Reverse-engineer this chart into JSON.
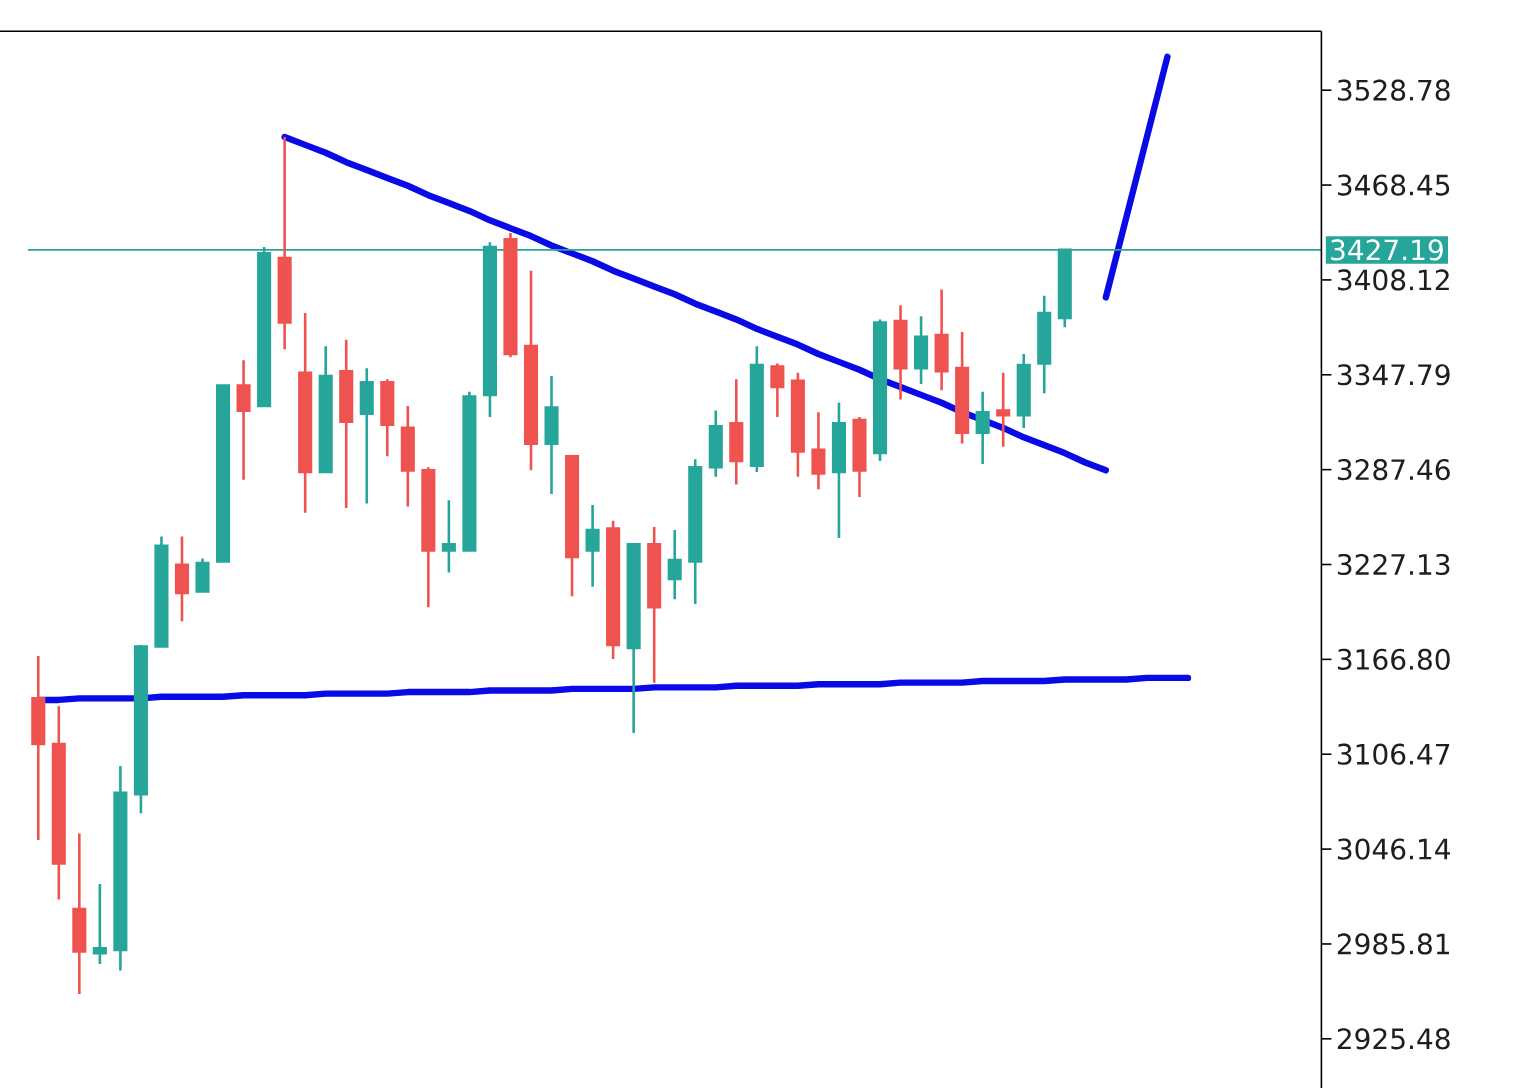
{
  "chart_data": {
    "type": "candlestick",
    "categories": [
      null,
      null,
      null,
      null,
      null,
      null,
      null,
      null,
      null,
      null,
      null,
      null,
      null,
      null,
      null,
      null,
      null,
      null,
      null,
      null,
      null,
      null,
      null,
      null,
      null,
      null,
      null,
      null,
      null,
      null,
      null,
      null,
      null,
      null,
      null,
      null,
      null,
      null,
      null,
      null,
      null,
      null,
      null,
      null,
      null,
      null,
      null,
      null,
      null,
      null,
      null,
      null,
      null,
      null,
      null,
      null,
      null
    ],
    "ohlc": [
      [
        3142,
        3169,
        3052,
        3113
      ],
      [
        3113,
        3137,
        3014,
        3037
      ],
      [
        3008,
        3056,
        2954,
        2981
      ],
      [
        2980,
        3024,
        2973,
        2983
      ],
      [
        2982,
        3099,
        2969,
        3082
      ],
      [
        3081,
        3176,
        3069,
        3175
      ],
      [
        3175,
        3245,
        3175,
        3239
      ],
      [
        3227,
        3245,
        3191,
        3209
      ],
      [
        3210,
        3231,
        3210,
        3228
      ],
      [
        3229,
        3341,
        3229,
        3341
      ],
      [
        3341,
        3357,
        3281,
        3325
      ],
      [
        3328,
        3429,
        3328,
        3425
      ],
      [
        3422,
        3499,
        3364,
        3381
      ],
      [
        3349,
        3387,
        3260,
        3286
      ],
      [
        3286,
        3366,
        3286,
        3347
      ],
      [
        3350,
        3370,
        3263,
        3318
      ],
      [
        3323,
        3352,
        3266,
        3343
      ],
      [
        3343,
        3345,
        3296,
        3316
      ],
      [
        3314,
        3328,
        3264,
        3287
      ],
      [
        3287,
        3289,
        3200,
        3236
      ],
      [
        3236,
        3268,
        3222,
        3240
      ],
      [
        3236,
        3337,
        3236,
        3334
      ],
      [
        3335,
        3432,
        3321,
        3429
      ],
      [
        3434,
        3438,
        3359,
        3361
      ],
      [
        3366,
        3414,
        3287,
        3304
      ],
      [
        3304,
        3347,
        3272,
        3327
      ],
      [
        3296,
        3296,
        3207,
        3232
      ],
      [
        3236,
        3265,
        3213,
        3249
      ],
      [
        3250,
        3255,
        3167,
        3176
      ],
      [
        3174,
        3240,
        3120,
        3240
      ],
      [
        3240,
        3251,
        3152,
        3200
      ],
      [
        3218,
        3249,
        3205,
        3230
      ],
      [
        3229,
        3294,
        3202,
        3289
      ],
      [
        3289,
        3325,
        3283,
        3315
      ],
      [
        3317,
        3345,
        3278,
        3293
      ],
      [
        3290,
        3366,
        3286,
        3354
      ],
      [
        3353,
        3355,
        3321,
        3340
      ],
      [
        3344,
        3349,
        3283,
        3299
      ],
      [
        3300,
        3324,
        3275,
        3285
      ],
      [
        3286,
        3330,
        3244,
        3317
      ],
      [
        3319,
        3321,
        3270,
        3287
      ],
      [
        3298,
        3383,
        3293,
        3381
      ],
      [
        3382,
        3392,
        3332,
        3352
      ],
      [
        3352,
        3385,
        3342,
        3372
      ],
      [
        3373,
        3402,
        3338,
        3350
      ],
      [
        3352,
        3375,
        3304,
        3311
      ],
      [
        3311,
        3337,
        3291,
        3324
      ],
      [
        3325,
        3349,
        3302,
        3322
      ],
      [
        3322,
        3361,
        3314,
        3354
      ],
      [
        3355,
        3398,
        3336,
        3387
      ],
      [
        3384,
        3427.19,
        3378,
        3427.19
      ],
      null,
      null,
      null,
      null,
      null,
      null
    ],
    "colors": [
      "#ef5350",
      "#ef5350",
      "#ef5350",
      "#26a69a",
      "#26a69a",
      "#26a69a",
      "#26a69a",
      "#ef5350",
      "#26a69a",
      "#26a69a",
      "#ef5350",
      "#26a69a",
      "#ef5350",
      "#ef5350",
      "#26a69a",
      "#ef5350",
      "#26a69a",
      "#ef5350",
      "#ef5350",
      "#ef5350",
      "#26a69a",
      "#26a69a",
      "#26a69a",
      "#ef5350",
      "#ef5350",
      "#26a69a",
      "#ef5350",
      "#26a69a",
      "#ef5350",
      "#26a69a",
      "#ef5350",
      "#26a69a",
      "#26a69a",
      "#26a69a",
      "#ef5350",
      "#26a69a",
      "#ef5350",
      "#ef5350",
      "#ef5350",
      "#26a69a",
      "#ef5350",
      "#26a69a",
      "#ef5350",
      "#26a69a",
      "#ef5350",
      "#ef5350",
      "#26a69a",
      "#ef5350",
      "#26a69a",
      "#26a69a",
      "#26a69a",
      null,
      null,
      null,
      null,
      null,
      null
    ],
    "series": [
      {
        "type": "line",
        "color": "#0a0ae6",
        "values": [
          3141,
          3141,
          3142,
          3142,
          3142,
          3142,
          3143,
          3143,
          3143,
          3143,
          3144,
          3144,
          3144,
          3144,
          3145,
          3145,
          3145,
          3145,
          3146,
          3146,
          3146,
          3146,
          3147,
          3147,
          3147,
          3147,
          3148,
          3148,
          3148,
          3148,
          3149,
          3149,
          3149,
          3149,
          3150,
          3150,
          3150,
          3150,
          3151,
          3151,
          3151,
          3151,
          3152,
          3152,
          3152,
          3152,
          3153,
          3153,
          3153,
          3153,
          3154,
          3154,
          3154,
          3154,
          3155,
          3155,
          3155
        ]
      },
      {
        "type": "line",
        "color": "#0a0ae6",
        "values": [
          null,
          null,
          null,
          null,
          null,
          null,
          null,
          null,
          null,
          null,
          null,
          null,
          3499,
          3494,
          3489,
          3483,
          3478,
          3473,
          3468,
          3462,
          3457,
          3452,
          3446,
          3441,
          3436,
          3430,
          3425,
          3420,
          3414,
          3409,
          3404,
          3399,
          3393,
          3388,
          3383,
          3377,
          3372,
          3367,
          3361,
          3356,
          3351,
          3345,
          3340,
          3335,
          3330,
          3324,
          3319,
          3314,
          3308,
          3303,
          3298,
          3292,
          3287,
          null,
          null,
          null,
          null
        ]
      },
      {
        "type": "line",
        "color": "#0a0ae6",
        "values": [
          null,
          null,
          null,
          null,
          null,
          null,
          null,
          null,
          null,
          null,
          null,
          null,
          null,
          null,
          null,
          null,
          null,
          null,
          null,
          null,
          null,
          null,
          null,
          null,
          null,
          null,
          null,
          null,
          null,
          null,
          null,
          null,
          null,
          null,
          null,
          null,
          null,
          null,
          null,
          null,
          null,
          null,
          null,
          null,
          null,
          null,
          null,
          null,
          null,
          null,
          null,
          null,
          3397,
          3448,
          3499,
          3550,
          null
        ]
      }
    ],
    "ref_lines": [
      {
        "axis": "y",
        "value": 3427.19,
        "label": "3427.19",
        "color": "#26a69a"
      }
    ],
    "ylim": [
      2894.2,
      3566.3
    ],
    "yticks": [
      2925.48,
      2985.81,
      3046.14,
      3106.47,
      {
        "value": 3166.8,
        "label": "3166.80"
      },
      3227.13,
      3287.46,
      3347.79,
      3408.12,
      3468.45,
      3528.78
    ],
    "tick_labels": "y"
  }
}
